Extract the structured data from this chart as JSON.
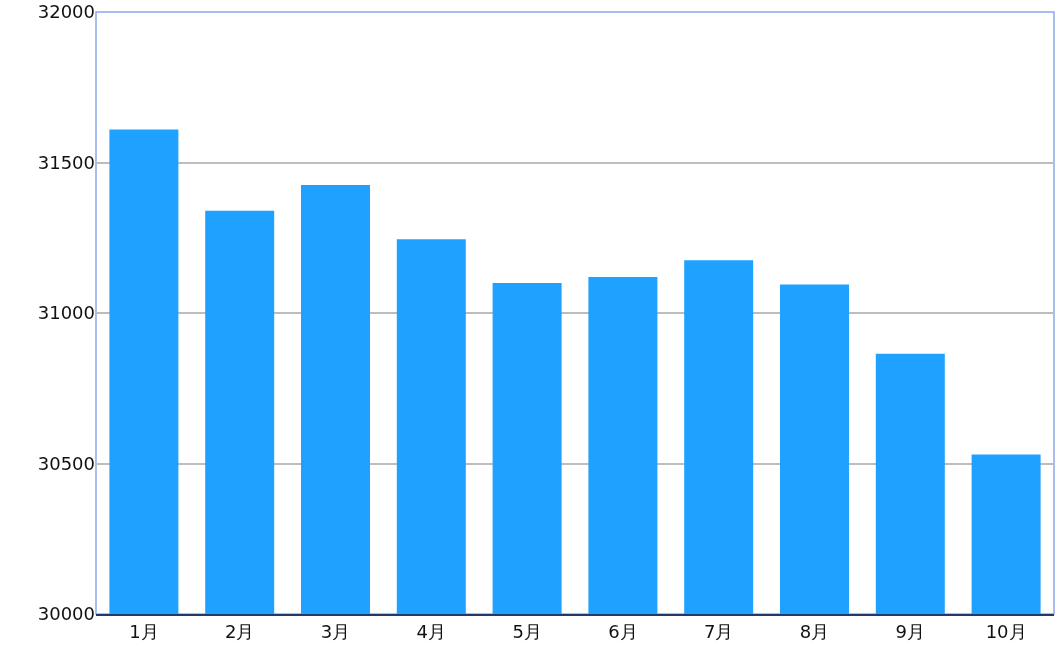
{
  "chart_data": {
    "type": "bar",
    "categories": [
      "1月",
      "2月",
      "3月",
      "4月",
      "5月",
      "6月",
      "7月",
      "8月",
      "9月",
      "10月"
    ],
    "values": [
      31610,
      31340,
      31425,
      31245,
      31100,
      31120,
      31175,
      31095,
      30865,
      30530
    ],
    "color": "#1ea1ff",
    "ylim": [
      30000,
      32000
    ],
    "yticks": [
      30000,
      30500,
      31000,
      31500,
      32000
    ],
    "grid": "y",
    "legend": false
  }
}
